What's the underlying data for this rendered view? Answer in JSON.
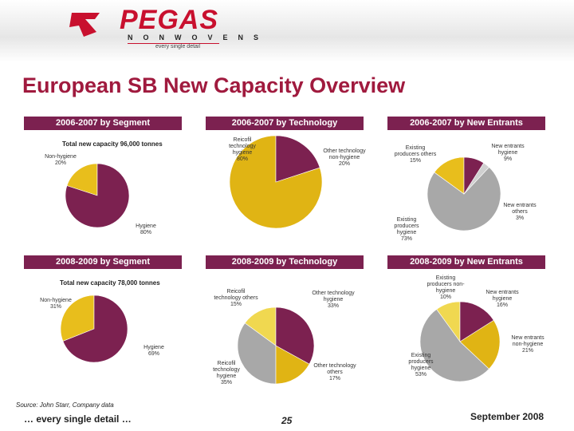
{
  "logo": {
    "name": "PEGAS",
    "sub": "NONWOVENS",
    "tagline": "every single detail"
  },
  "title": "European SB New Capacity Overview",
  "chart_data": [
    {
      "type": "pie",
      "title": "2006-2007 by Segment",
      "subtitle": "Total new capacity 96,000 tonnes",
      "categories": [
        "Non-hygiene",
        "Hygiene"
      ],
      "values": [
        20,
        80
      ],
      "value_labels": [
        "20%",
        "80%"
      ],
      "colors": [
        "#e8be1c",
        "#7c2150"
      ]
    },
    {
      "type": "pie",
      "title": "2006-2007 by Technology",
      "categories": [
        "Reicofil technology hygiene",
        "Other technology non-hygiene"
      ],
      "values": [
        80,
        20
      ],
      "value_labels": [
        "80%",
        "20%"
      ],
      "colors": [
        "#e0b414",
        "#7c2150"
      ]
    },
    {
      "type": "pie",
      "title": "2006-2007 by New Entrants",
      "categories": [
        "Existing producers others",
        "Existing producers hygiene",
        "New entrants others",
        "New entrants hygiene"
      ],
      "values": [
        15,
        73,
        3,
        9
      ],
      "value_labels": [
        "15%",
        "73%",
        "3%",
        "9%"
      ],
      "colors": [
        "#e8be1c",
        "#a8a8a8",
        "#d0d0d0",
        "#7c2150"
      ]
    },
    {
      "type": "pie",
      "title": "2008-2009 by Segment",
      "subtitle": "Total new capacity 78,000 tonnes",
      "categories": [
        "Non-hygiene",
        "Hygiene"
      ],
      "values": [
        31,
        69
      ],
      "value_labels": [
        "31%",
        "69%"
      ],
      "colors": [
        "#e8be1c",
        "#7c2150"
      ]
    },
    {
      "type": "pie",
      "title": "2008-2009 by Technology",
      "categories": [
        "Reicofil technology others",
        "Reicofil technology hygiene",
        "Other technology others",
        "Other technology hygiene"
      ],
      "values": [
        15,
        35,
        17,
        33
      ],
      "value_labels": [
        "15%",
        "35%",
        "17%",
        "33%"
      ],
      "colors": [
        "#f0d850",
        "#a8a8a8",
        "#e0b414",
        "#7c2150"
      ]
    },
    {
      "type": "pie",
      "title": "2008-2009 by New Entrants",
      "categories": [
        "Existing producers non-hygiene",
        "Existing producers hygiene",
        "New entrants non-hygiene",
        "New entrants hygiene"
      ],
      "values": [
        10,
        53,
        21,
        16
      ],
      "value_labels": [
        "10%",
        "53%",
        "21%",
        "16%"
      ],
      "colors": [
        "#f0d850",
        "#a8a8a8",
        "#e0b414",
        "#7c2150"
      ]
    }
  ],
  "source": "Source: John Starr, Company data",
  "footer": {
    "left": "… every single detail …",
    "page": "25",
    "date": "September 2008"
  }
}
